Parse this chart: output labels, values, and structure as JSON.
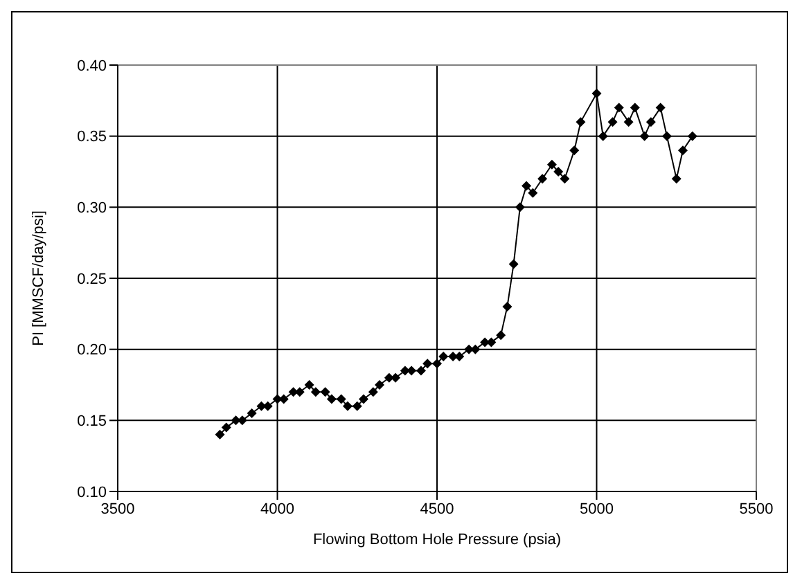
{
  "chart_data": {
    "type": "line",
    "xlabel": "Flowing Bottom Hole Pressure (psia)",
    "ylabel": "PI [MMSCF/day/psi]",
    "x": [
      3820,
      3840,
      3870,
      3890,
      3920,
      3950,
      3970,
      4000,
      4020,
      4050,
      4070,
      4100,
      4120,
      4150,
      4170,
      4200,
      4220,
      4250,
      4270,
      4300,
      4320,
      4350,
      4370,
      4400,
      4420,
      4450,
      4470,
      4500,
      4520,
      4550,
      4570,
      4600,
      4620,
      4650,
      4670,
      4700,
      4720,
      4740,
      4760,
      4780,
      4800,
      4830,
      4860,
      4880,
      4900,
      4930,
      4950,
      5000,
      5020,
      5050,
      5070,
      5100,
      5120,
      5150,
      5170,
      5200,
      5220,
      5250,
      5270,
      5300
    ],
    "series": [
      {
        "color": "#000000",
        "values": [
          0.14,
          0.145,
          0.15,
          0.15,
          0.155,
          0.16,
          0.16,
          0.165,
          0.165,
          0.17,
          0.17,
          0.175,
          0.17,
          0.17,
          0.165,
          0.165,
          0.16,
          0.16,
          0.165,
          0.17,
          0.175,
          0.18,
          0.18,
          0.185,
          0.185,
          0.185,
          0.19,
          0.19,
          0.195,
          0.195,
          0.195,
          0.2,
          0.2,
          0.205,
          0.205,
          0.21,
          0.23,
          0.26,
          0.3,
          0.315,
          0.31,
          0.32,
          0.33,
          0.325,
          0.32,
          0.34,
          0.36,
          0.38,
          0.35,
          0.36,
          0.37,
          0.36,
          0.37,
          0.35,
          0.36,
          0.37,
          0.35,
          0.32,
          0.34,
          0.35
        ]
      }
    ],
    "xlim": [
      3500,
      5500
    ],
    "xticks": [
      3500,
      4000,
      4500,
      5000,
      5500
    ],
    "ylim": [
      0.1,
      0.4
    ],
    "yticks": [
      {
        "value": 0.1,
        "label": "0.10"
      },
      {
        "value": 0.15,
        "label": "0.15"
      },
      {
        "value": 0.2,
        "label": "0.20"
      },
      {
        "value": 0.25,
        "label": "0.25"
      },
      {
        "value": 0.3,
        "label": "0.30"
      },
      {
        "value": 0.35,
        "label": "0.35"
      },
      {
        "value": 0.4,
        "label": "0.40"
      }
    ],
    "grid": true,
    "legend": false,
    "marker": "diamond",
    "line_style": "solid"
  }
}
